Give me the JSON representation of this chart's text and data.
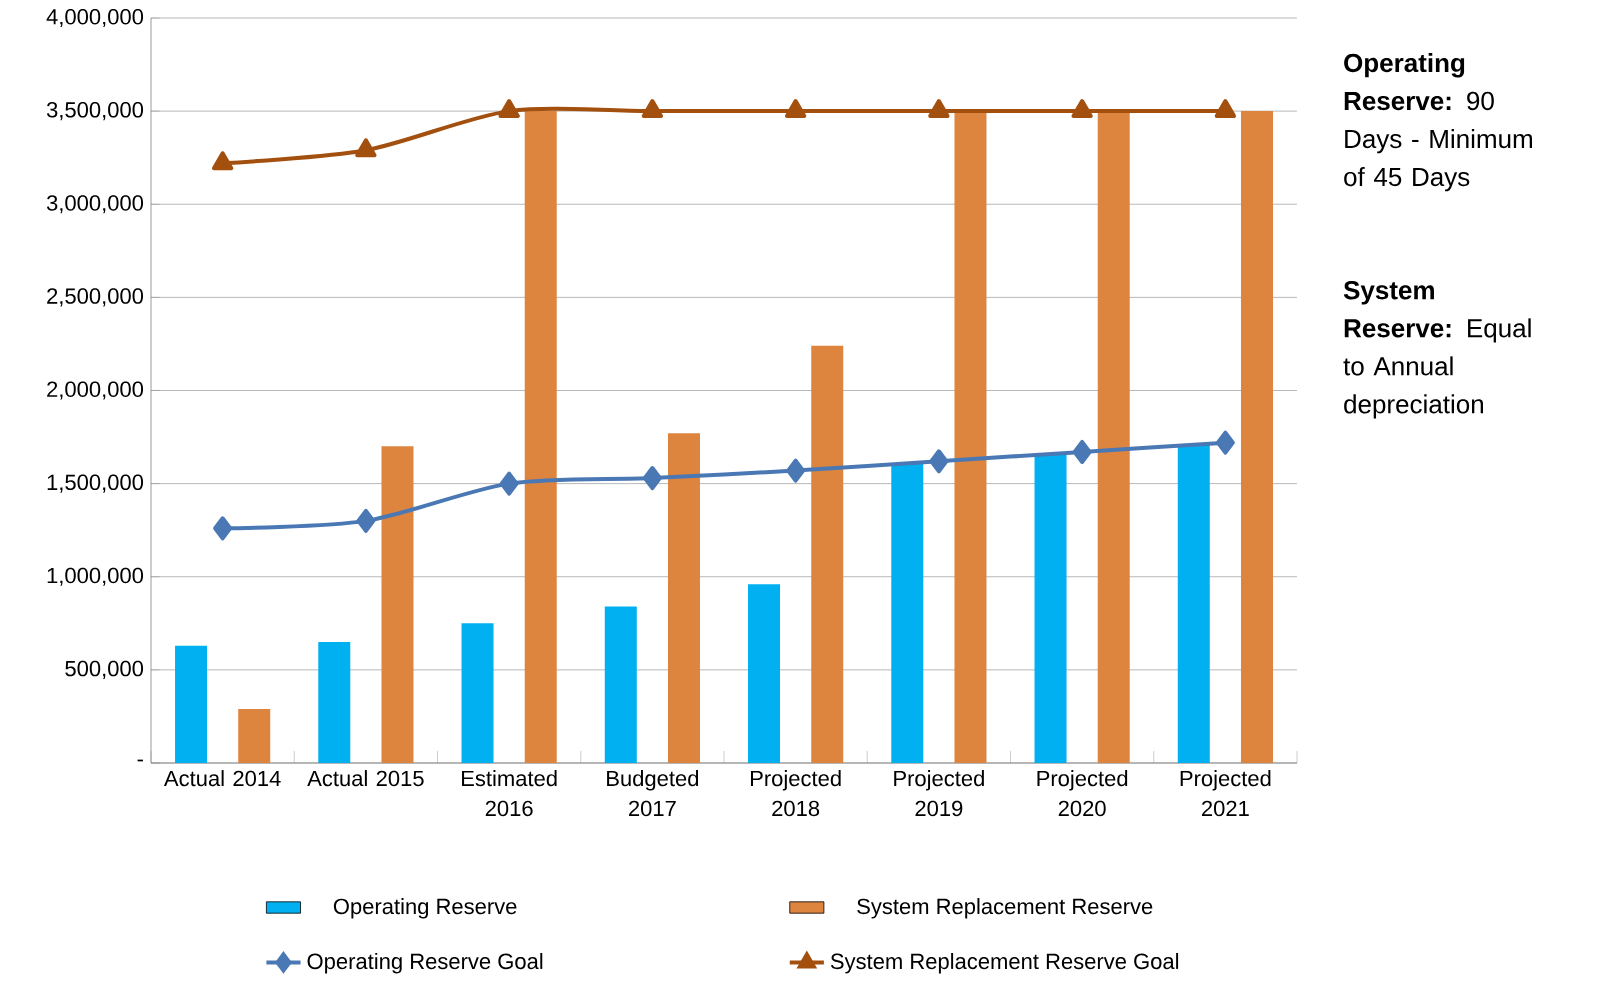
{
  "chart_data": {
    "type": "bar",
    "categories": [
      "Actual 2014",
      "Actual 2015",
      "Estimated 2016",
      "Budgeted 2017",
      "Projected 2018",
      "Projected 2019",
      "Projected 2020",
      "Projected 2021"
    ],
    "series": [
      {
        "name": "Operating Reserve",
        "color": "#00b0f0",
        "values": [
          630000,
          650000,
          750000,
          840000,
          960000,
          1610000,
          1660000,
          1710000
        ]
      },
      {
        "name": "System Replacement Reserve",
        "color": "#dd843f",
        "values": [
          290000,
          1700000,
          3500000,
          1770000,
          2240000,
          3500000,
          3500000,
          3500000
        ]
      },
      {
        "name": "Operating Reserve Goal",
        "type": "line",
        "color": "#4a78b4",
        "marker": "diamond",
        "values": [
          1260000,
          1300000,
          1500000,
          1530000,
          1570000,
          1620000,
          1670000,
          1720000
        ]
      },
      {
        "name": "System Replacement Reserve Goal",
        "type": "line",
        "color": "#a3500f",
        "marker": "triangle",
        "values": [
          3220000,
          3290000,
          3500000,
          3500000,
          3500000,
          3500000,
          3500000,
          3500000
        ]
      }
    ],
    "ylim": [
      0,
      4000000
    ],
    "yticks": [
      {
        "value": 0,
        "label": "-"
      },
      {
        "value": 500000,
        "label": "500,000"
      },
      {
        "value": 1000000,
        "label": "1,000,000"
      },
      {
        "value": 1500000,
        "label": "1,500,000"
      },
      {
        "value": 2000000,
        "label": "2,000,000"
      },
      {
        "value": 2500000,
        "label": "2,500,000"
      },
      {
        "value": 3000000,
        "label": "3,000,000"
      },
      {
        "value": 3500000,
        "label": "3,500,000"
      },
      {
        "value": 4000000,
        "label": "4,000,000"
      }
    ],
    "grid": "y",
    "legend": "bottom",
    "annotations": [
      "**Operating Reserve:** 90 Days - Minimum of 45 Days",
      "**System Reserve:** Equal to Annual depreciation"
    ]
  }
}
